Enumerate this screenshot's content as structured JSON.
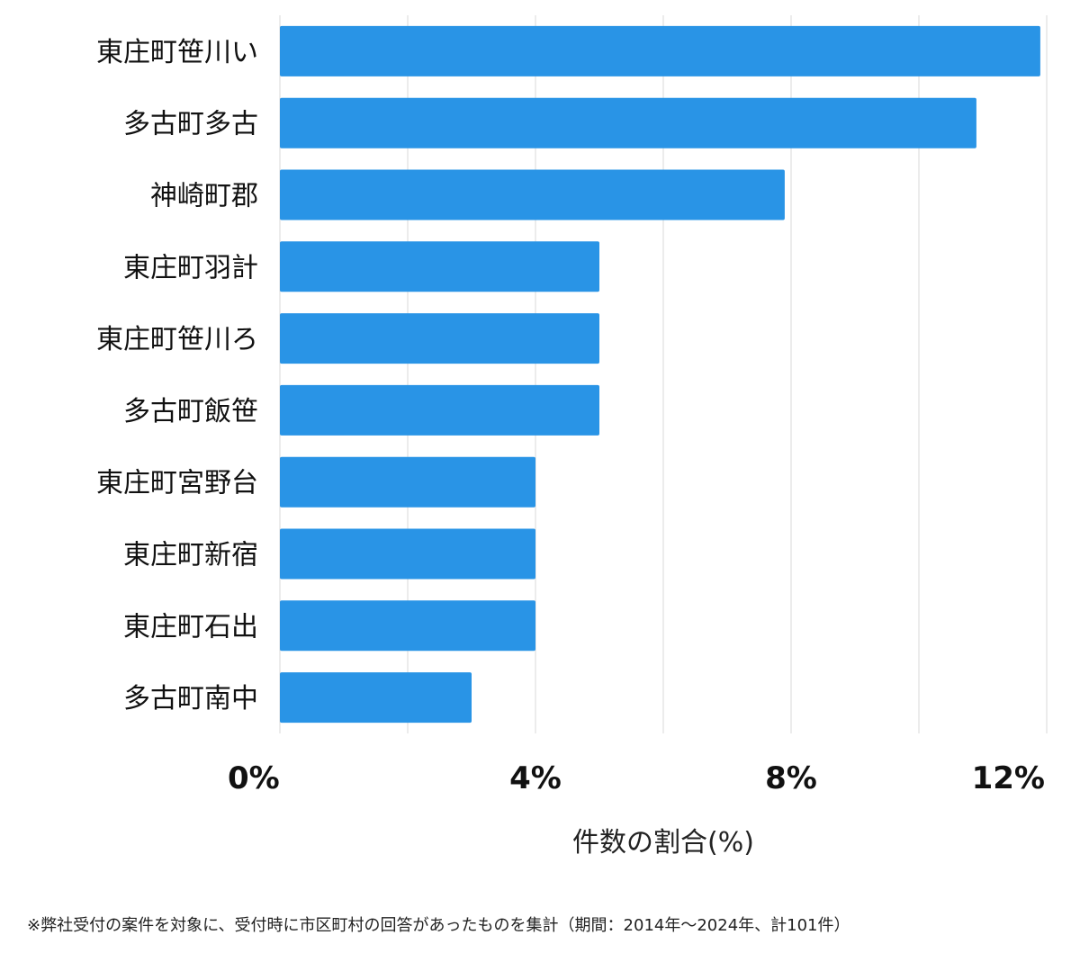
{
  "chart_data": {
    "type": "bar",
    "orientation": "horizontal",
    "categories": [
      "東庄町笹川い",
      "多古町多古",
      "神崎町郡",
      "東庄町羽計",
      "東庄町笹川ろ",
      "多古町飯笹",
      "東庄町宮野台",
      "東庄町新宿",
      "東庄町石出",
      "多古町南中"
    ],
    "values": [
      11.9,
      10.9,
      7.9,
      5.0,
      5.0,
      5.0,
      4.0,
      4.0,
      4.0,
      3.0
    ],
    "xlabel": "件数の割合(%)",
    "ylabel": "",
    "xlim": [
      0,
      12
    ],
    "ticks": [
      0,
      4,
      8,
      12
    ],
    "tick_labels": [
      "0%",
      "4%",
      "8%",
      "12%"
    ],
    "grid": true,
    "bar_color": "#2994e6",
    "grid_color": "#d9d9d9"
  },
  "footnote": "※弊社受付の案件を対象に、受付時に市区町村の回答があったものを集計（期間：2014年～2024年、計101件）"
}
